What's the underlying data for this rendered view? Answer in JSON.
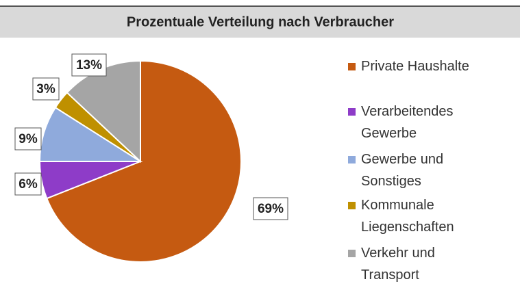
{
  "chart_data": {
    "type": "pie",
    "title": "Prozentuale Verteilung nach Verbraucher",
    "categories": [
      "Private Haushalte",
      "Verarbeitendes Gewerbe",
      "Gewerbe und Sonstiges",
      "Kommunale Liegenschaften",
      "Verkehr und Transport"
    ],
    "values": [
      69,
      6,
      9,
      3,
      13
    ],
    "value_labels": [
      "69%",
      "6%",
      "9%",
      "3%",
      "13%"
    ],
    "colors": [
      "#c55a11",
      "#8e3cc8",
      "#8faadc",
      "#bf9000",
      "#a5a5a5"
    ],
    "legend": "right"
  }
}
